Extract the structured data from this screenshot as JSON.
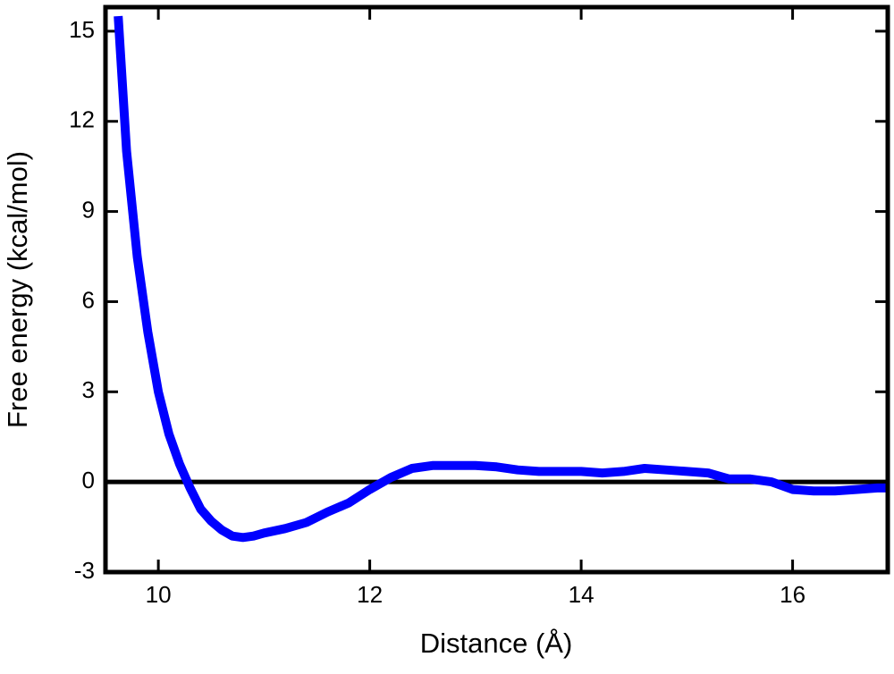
{
  "chart_data": {
    "type": "line",
    "x_label": "Distance (Å)",
    "y_label": "Free energy (kcal/mol)",
    "x": [
      9.62,
      9.7,
      9.8,
      9.9,
      10.0,
      10.1,
      10.2,
      10.3,
      10.4,
      10.5,
      10.6,
      10.7,
      10.8,
      10.9,
      11.0,
      11.2,
      11.4,
      11.6,
      11.8,
      12.0,
      12.2,
      12.4,
      12.6,
      12.8,
      13.0,
      13.2,
      13.4,
      13.6,
      13.8,
      14.0,
      14.2,
      14.4,
      14.6,
      14.8,
      15.0,
      15.2,
      15.4,
      15.6,
      15.8,
      16.0,
      16.2,
      16.4,
      16.6,
      16.8,
      16.9
    ],
    "values": [
      15.5,
      11,
      7.5,
      5,
      3,
      1.6,
      0.6,
      -0.2,
      -0.9,
      -1.3,
      -1.6,
      -1.8,
      -1.85,
      -1.8,
      -1.7,
      -1.55,
      -1.35,
      -1.0,
      -0.7,
      -0.25,
      0.15,
      0.45,
      0.55,
      0.55,
      0.55,
      0.5,
      0.4,
      0.35,
      0.35,
      0.35,
      0.3,
      0.35,
      0.45,
      0.4,
      0.35,
      0.3,
      0.1,
      0.1,
      0.0,
      -0.25,
      -0.3,
      -0.3,
      -0.25,
      -0.2,
      -0.2
    ],
    "color": "#0000ff",
    "reference_line": 0,
    "xlim": [
      9.5,
      16.9
    ],
    "xticks": [
      10,
      12,
      14,
      16
    ],
    "ylim": [
      -3,
      15.8
    ],
    "yticks": [
      -3,
      0,
      3,
      6,
      9,
      12,
      15
    ]
  }
}
